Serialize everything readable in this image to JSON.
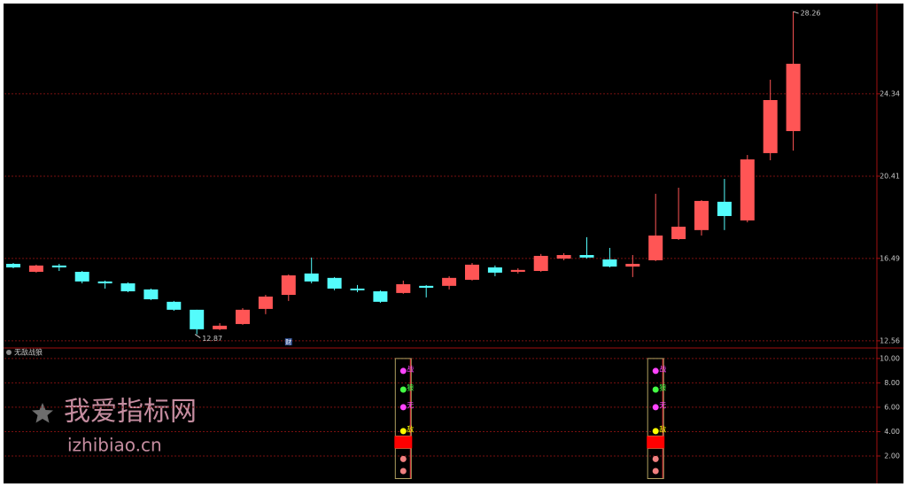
{
  "chart_data": [
    {
      "type": "candlestick",
      "categories": [
        null,
        null,
        null,
        null,
        null,
        null,
        null,
        null,
        null,
        null,
        null,
        null,
        null,
        null,
        null,
        null,
        null,
        null,
        null,
        null,
        null,
        null,
        null,
        null,
        null,
        null,
        null,
        null,
        null,
        null,
        null,
        null,
        null,
        null,
        null
      ],
      "open": [
        16.23,
        15.85,
        16.15,
        15.85,
        15.39,
        15.3,
        15.01,
        14.42,
        14.04,
        13.11,
        13.36,
        14.08,
        14.75,
        15.77,
        15.56,
        15.05,
        14.92,
        14.84,
        15.18,
        15.18,
        15.47,
        16.06,
        15.85,
        15.89,
        16.48,
        16.65,
        16.44,
        16.1,
        16.4,
        17.41,
        17.84,
        19.19,
        18.3,
        21.51,
        22.56
      ],
      "close": [
        16.06,
        16.15,
        16.06,
        15.39,
        15.3,
        14.92,
        14.54,
        14.04,
        13.11,
        13.28,
        14.04,
        14.67,
        15.68,
        15.39,
        15.05,
        14.97,
        14.42,
        15.26,
        15.09,
        15.56,
        16.19,
        15.81,
        15.94,
        16.61,
        16.65,
        16.53,
        16.1,
        16.23,
        17.58,
        18.0,
        19.23,
        18.51,
        21.21,
        24.04,
        25.77
      ],
      "high": [
        16.27,
        16.19,
        16.23,
        15.89,
        15.43,
        15.35,
        15.05,
        14.46,
        14.04,
        13.4,
        14.12,
        14.75,
        15.73,
        16.53,
        15.6,
        15.22,
        14.97,
        15.43,
        15.22,
        15.64,
        16.27,
        16.15,
        16.02,
        16.7,
        16.74,
        17.5,
        16.99,
        16.65,
        19.57,
        19.86,
        19.27,
        20.28,
        21.42,
        25.01,
        28.26
      ],
      "low": [
        16.02,
        15.81,
        15.89,
        15.3,
        15.05,
        14.88,
        14.5,
        13.99,
        12.87,
        13.07,
        13.32,
        13.83,
        14.46,
        15.3,
        14.97,
        14.88,
        14.37,
        14.8,
        14.63,
        15.01,
        15.43,
        15.64,
        15.77,
        15.85,
        16.4,
        16.48,
        16.06,
        15.6,
        16.36,
        17.37,
        17.58,
        17.84,
        18.21,
        21.17,
        21.63
      ],
      "up_color": "#ff5555",
      "down_color": "#54fcfc",
      "ylim": [
        12.26,
        28.6
      ],
      "yticks": [
        12.56,
        16.49,
        20.41,
        24.34
      ],
      "grid": true,
      "marker_label": "财"
    },
    {
      "type": "indicator",
      "title": "无敌战狼",
      "ylim": [
        0,
        10.5
      ],
      "yticks": [
        {
          "value": 2,
          "label": "2.00"
        },
        {
          "value": 4,
          "label": "4.00"
        },
        {
          "value": 6,
          "label": "6.00"
        },
        {
          "value": 8,
          "label": "8.00"
        },
        {
          "value": 10,
          "label": "10.00"
        }
      ],
      "grid": true,
      "bars": {
        "color": "#ff0000",
        "values": [
          null,
          null,
          null,
          null,
          null,
          null,
          null,
          null,
          null,
          null,
          null,
          null,
          null,
          null,
          null,
          null,
          null,
          3.64,
          null,
          null,
          null,
          null,
          null,
          null,
          null,
          null,
          null,
          null,
          3.64,
          null,
          null,
          null,
          null,
          null,
          null
        ]
      },
      "series": [
        {
          "name": "战",
          "color": "#ff44ff",
          "values": [
            null,
            null,
            null,
            null,
            null,
            null,
            null,
            null,
            null,
            null,
            null,
            null,
            null,
            null,
            null,
            null,
            null,
            8.98,
            null,
            null,
            null,
            null,
            null,
            null,
            null,
            null,
            null,
            null,
            8.98,
            null,
            null,
            null,
            null,
            null,
            null
          ]
        },
        {
          "name": "狼",
          "color": "#44ff44",
          "values": [
            null,
            null,
            null,
            null,
            null,
            null,
            null,
            null,
            null,
            null,
            null,
            null,
            null,
            null,
            null,
            null,
            null,
            7.45,
            null,
            null,
            null,
            null,
            null,
            null,
            null,
            null,
            null,
            null,
            7.45,
            null,
            null,
            null,
            null,
            null,
            null
          ]
        },
        {
          "name": "无",
          "color": "#ff44ff",
          "values": [
            null,
            null,
            null,
            null,
            null,
            null,
            null,
            null,
            null,
            null,
            null,
            null,
            null,
            null,
            null,
            null,
            null,
            6.0,
            null,
            null,
            null,
            null,
            null,
            null,
            null,
            null,
            null,
            null,
            6.0,
            null,
            null,
            null,
            null,
            null,
            null
          ]
        },
        {
          "name": "敌",
          "color": "#ffff00",
          "values": [
            null,
            null,
            null,
            null,
            null,
            null,
            null,
            null,
            null,
            null,
            null,
            null,
            null,
            null,
            null,
            null,
            null,
            4.04,
            null,
            null,
            null,
            null,
            null,
            null,
            null,
            null,
            null,
            null,
            4.04,
            null,
            null,
            null,
            null,
            null,
            null
          ]
        }
      ]
    }
  ],
  "watermark": {
    "title": "我爱指标网",
    "url": "izhibiao.cn"
  }
}
